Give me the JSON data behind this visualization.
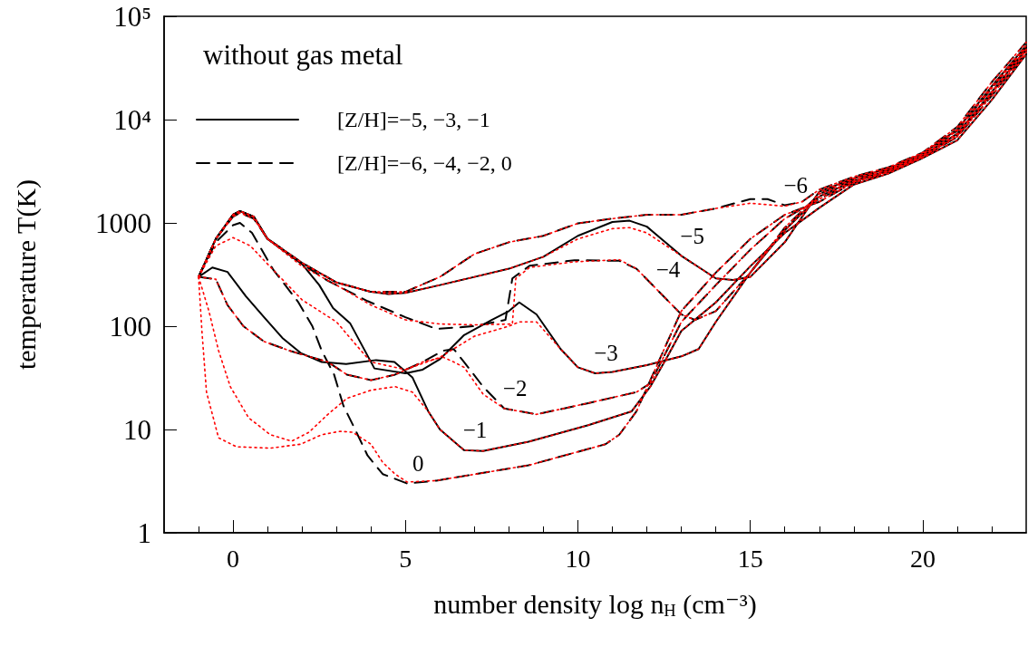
{
  "chart_data": {
    "type": "line",
    "xlabel": "number density log n$_{H}$ (cm⁻³)",
    "ylabel": "temperature T(K)",
    "legend_title": "without gas metal",
    "legend": "top left",
    "grid": false,
    "log": "y",
    "marker": "none",
    "xlim": [
      -2,
      23
    ],
    "xticks": [
      0,
      5,
      10,
      15,
      20
    ],
    "ylim": [
      1,
      100000
    ],
    "yticks": [
      1,
      10,
      100,
      1000,
      {
        "value": 10000,
        "label": "10⁴"
      },
      {
        "value": 100000,
        "label": "10⁵"
      }
    ],
    "annotations": [
      {
        "text": "−6",
        "x": 16,
        "y": 1480
      },
      {
        "text": "−5",
        "x": 13,
        "y": 480
      },
      {
        "text": "−4",
        "x": 12.3,
        "y": 225
      },
      {
        "text": "−3",
        "x": 10.5,
        "y": 35
      },
      {
        "text": "−2",
        "x": 7.86,
        "y": 16
      },
      {
        "text": "−1",
        "x": 6.7,
        "y": 6.3
      },
      {
        "text": "0",
        "x": 5.05,
        "y": 3.0
      }
    ],
    "series": [
      {
        "name": "[Z/H]=−6, −4, −2, 0",
        "color": "#000000",
        "line_style": "dashed",
        "x": [
          -1,
          -0.5,
          0,
          0.2,
          0.6,
          1,
          2,
          3,
          4,
          5,
          6,
          7,
          8,
          9,
          10,
          11,
          12,
          13,
          14,
          15,
          15.5,
          16,
          16.5,
          17,
          18,
          19,
          20,
          21,
          22,
          23
        ],
        "values": [
          300,
          700,
          1200,
          1300,
          1150,
          700,
          410,
          265,
          215,
          215,
          300,
          500,
          650,
          750,
          990,
          1100,
          1200,
          1200,
          1380,
          1700,
          1700,
          1480,
          1600,
          2100,
          2800,
          3450,
          4800,
          8500,
          23000,
          56000
        ]
      },
      {
        "name": "[Z/H]=−5, −3, −1",
        "color": "#000000",
        "line_style": "solid",
        "x": [
          -1,
          -0.5,
          0,
          0.2,
          0.6,
          1,
          2,
          3,
          4,
          4.5,
          5,
          6,
          7,
          8,
          9,
          10,
          11,
          11.5,
          12,
          13,
          14,
          14.5,
          15,
          16,
          17,
          18,
          19,
          20,
          21,
          22,
          23
        ],
        "values": [
          300,
          700,
          1200,
          1300,
          1150,
          700,
          410,
          265,
          215,
          205,
          210,
          250,
          300,
          360,
          470,
          750,
          1020,
          1050,
          920,
          480,
          290,
          280,
          300,
          650,
          2000,
          2700,
          3350,
          4700,
          8000,
          21000,
          52000
        ]
      },
      {
        "color": "#000000",
        "line_style": "dashed",
        "x": [
          -1,
          -0.5,
          0,
          0.2,
          0.6,
          1,
          2,
          2.75,
          3.9,
          5,
          5.9,
          7,
          7.9,
          8.1,
          8.6,
          9.9,
          11.2,
          11.7,
          12.3,
          13,
          13.4,
          14,
          15,
          16,
          17,
          18,
          19,
          20,
          21,
          22,
          23
        ],
        "values": [
          300,
          700,
          1150,
          1250,
          1100,
          700,
          400,
          275,
          175,
          122,
          94,
          100,
          115,
          290,
          385,
          435,
          430,
          360,
          225,
          130,
          115,
          140,
          330,
          900,
          1900,
          2650,
          3300,
          4600,
          7800,
          20000,
          50000
        ]
      },
      {
        "color": "#000000",
        "line_style": "solid",
        "x": [
          -1,
          -0.5,
          0,
          0.2,
          0.6,
          1,
          2,
          2.5,
          2.9,
          3.4,
          4.1,
          5,
          5.5,
          6,
          6.7,
          7.5,
          8,
          8.3,
          8.8,
          9.5,
          10,
          10.5,
          11,
          12,
          13,
          13.5,
          14,
          15,
          16,
          17,
          18,
          19,
          20,
          21,
          22,
          23
        ],
        "values": [
          300,
          700,
          1200,
          1300,
          1150,
          700,
          400,
          250,
          150,
          106,
          39,
          35,
          38,
          48,
          82,
          115,
          140,
          170,
          130,
          60,
          40,
          35,
          36,
          42,
          51,
          60,
          110,
          330,
          850,
          1800,
          2550,
          3200,
          4500,
          7300,
          18500,
          48000
        ]
      },
      {
        "color": "#000000",
        "line_style": "dashed",
        "x": [
          -1,
          -0.5,
          -0.16,
          0.3,
          0.9,
          1.7,
          2.75,
          3.3,
          4,
          4.7,
          5.5,
          6.1,
          6.4,
          6.7,
          7.25,
          7.86,
          8.8,
          10.3,
          11.7,
          12.1,
          13,
          14,
          15,
          16,
          17,
          18,
          19,
          20,
          21,
          22,
          23
        ],
        "values": [
          300,
          285,
          160,
          100,
          71,
          57,
          45,
          34,
          30,
          34,
          45,
          58,
          60,
          45,
          26,
          16,
          14,
          18,
          23,
          28,
          110,
          250,
          550,
          1100,
          1700,
          2500,
          3150,
          4400,
          7000,
          18000,
          47000
        ]
      },
      {
        "color": "#000000",
        "line_style": "solid",
        "x": [
          -1,
          -0.6,
          -0.16,
          0.37,
          0.9,
          1.43,
          1.96,
          2.57,
          3.28,
          4.15,
          4.68,
          5.2,
          5.66,
          6,
          6.7,
          7.25,
          8.57,
          10.3,
          11.56,
          12.1,
          12.6,
          13,
          14,
          15,
          16,
          17,
          18,
          19,
          20,
          21,
          22,
          23
        ],
        "values": [
          300,
          370,
          335,
          195,
          122,
          77,
          55,
          45,
          43,
          47,
          45,
          32,
          15,
          10,
          6.3,
          6.2,
          7.6,
          11,
          15,
          26,
          51,
          90,
          170,
          380,
          800,
          1400,
          2350,
          3000,
          4250,
          6300,
          15500,
          43000
        ]
      },
      {
        "color": "#000000",
        "line_style": "dashed",
        "x": [
          -1,
          -0.5,
          0,
          0.2,
          0.55,
          1.16,
          1.88,
          2.3,
          2.57,
          2.93,
          3.2,
          3.54,
          3.9,
          4.34,
          5.05,
          5.9,
          8.57,
          10.8,
          11.2,
          11.7,
          12.1,
          12.6,
          13,
          14,
          15,
          16,
          17,
          18,
          19,
          20,
          21,
          22,
          23
        ],
        "values": [
          300,
          650,
          950,
          1000,
          800,
          355,
          173,
          100,
          58,
          34,
          17,
          10,
          5.6,
          3.7,
          3.0,
          3.2,
          4.5,
          7.2,
          8.9,
          15,
          30,
          71,
          140,
          330,
          700,
          1200,
          1600,
          2450,
          3100,
          4350,
          6800,
          17000,
          45000
        ]
      },
      {
        "color": "#ff0000",
        "line_style": "dotted",
        "x": [
          -1,
          -0.5,
          0,
          0.2,
          0.6,
          1,
          2,
          3,
          4,
          5,
          6,
          7,
          8,
          9,
          10,
          11,
          12,
          13,
          14,
          15,
          15.5,
          16,
          16.5,
          17,
          18,
          19,
          20,
          21,
          22,
          23
        ],
        "values": [
          300,
          700,
          1200,
          1300,
          1150,
          700,
          410,
          265,
          215,
          215,
          300,
          500,
          650,
          750,
          990,
          1100,
          1200,
          1200,
          1380,
          1550,
          1500,
          1450,
          1600,
          2100,
          2800,
          3450,
          4800,
          8500,
          23000,
          56000
        ]
      },
      {
        "color": "#ff0000",
        "line_style": "dotted",
        "x": [
          -1,
          -0.5,
          0,
          0.2,
          0.6,
          1,
          2,
          3,
          4,
          4.5,
          5,
          6,
          7,
          8,
          9,
          10,
          11,
          11.5,
          12,
          13,
          14,
          14.5,
          15,
          16,
          17,
          18,
          19,
          20,
          21,
          22,
          23
        ],
        "values": [
          300,
          700,
          1200,
          1300,
          1150,
          700,
          410,
          265,
          215,
          205,
          210,
          250,
          300,
          360,
          470,
          700,
          880,
          900,
          800,
          480,
          290,
          280,
          300,
          650,
          2000,
          2700,
          3350,
          4700,
          8000,
          21000,
          52000
        ]
      },
      {
        "color": "#ff0000",
        "line_style": "dotted",
        "x": [
          -1,
          -0.5,
          0,
          0.2,
          0.6,
          1,
          2,
          3,
          4,
          5,
          6,
          7,
          8.1,
          8.2,
          8.6,
          9.9,
          11.2,
          11.7,
          12.3,
          13,
          13.4,
          14,
          15,
          16,
          17,
          18,
          19,
          20,
          21,
          22,
          23
        ],
        "values": [
          300,
          700,
          1150,
          1250,
          1100,
          700,
          380,
          250,
          160,
          115,
          105,
          103,
          105,
          290,
          370,
          420,
          440,
          360,
          225,
          130,
          115,
          140,
          330,
          900,
          1900,
          2650,
          3300,
          4600,
          7800,
          20000,
          50000
        ]
      },
      {
        "color": "#ff0000",
        "line_style": "dotted",
        "x": [
          -1,
          -0.5,
          0,
          0.5,
          1,
          2,
          3,
          3.5,
          4,
          5,
          6,
          7,
          8,
          8.3,
          8.8,
          9.5,
          10,
          10.5,
          11,
          12,
          13,
          13.5,
          14,
          15,
          16,
          17,
          18,
          19,
          20,
          21,
          22,
          23
        ],
        "values": [
          300,
          600,
          720,
          600,
          400,
          180,
          110,
          70,
          45,
          38,
          50,
          80,
          100,
          110,
          110,
          60,
          40,
          35,
          36,
          42,
          51,
          60,
          110,
          330,
          850,
          1800,
          2550,
          3200,
          4500,
          7300,
          18500,
          48000
        ]
      },
      {
        "color": "#ff0000",
        "line_style": "dotted",
        "x": [
          -1,
          -0.5,
          -0.16,
          0.3,
          0.9,
          1.7,
          2.75,
          3.3,
          4,
          4.7,
          5.5,
          6.1,
          6.4,
          6.7,
          7.25,
          7.86,
          8.8,
          10.3,
          11.7,
          12.1,
          13,
          14,
          15,
          16,
          17,
          18,
          19,
          20,
          21,
          22,
          23
        ],
        "values": [
          300,
          285,
          160,
          100,
          71,
          57,
          45,
          34,
          30,
          34,
          45,
          50,
          45,
          40,
          22,
          16,
          14,
          18,
          23,
          28,
          110,
          250,
          550,
          1100,
          1700,
          2500,
          3150,
          4400,
          7000,
          18000,
          47000
        ]
      },
      {
        "color": "#ff0000",
        "line_style": "dotted",
        "x": [
          -1,
          -0.7,
          -0.42,
          -0.08,
          0.45,
          1.08,
          1.7,
          2.2,
          2.75,
          3.3,
          4,
          4.7,
          5.2,
          5.66,
          6,
          6.7,
          7.25,
          8.57,
          10.3,
          11.56,
          12.1,
          12.6,
          13,
          14,
          15,
          16,
          17,
          18,
          19,
          20,
          21,
          22,
          23
        ],
        "values": [
          300,
          140,
          58,
          26,
          13,
          8.9,
          7.7,
          9.4,
          14,
          20,
          24,
          26,
          23,
          15,
          10,
          6.3,
          6.2,
          7.6,
          11,
          15,
          26,
          51,
          90,
          170,
          380,
          800,
          1400,
          2350,
          3000,
          4250,
          6300,
          15500,
          43000
        ]
      },
      {
        "color": "#ff0000",
        "line_style": "dotted",
        "x": [
          -1,
          -0.9,
          -0.77,
          -0.42,
          0.1,
          1.08,
          1.96,
          2.57,
          3.1,
          3.47,
          4,
          4.34,
          4.7,
          5.05,
          5.9,
          8.57,
          10.8,
          11.2,
          11.7,
          12.1,
          12.6,
          13,
          14,
          15,
          16,
          17,
          18,
          19,
          20,
          21,
          22,
          23
        ],
        "values": [
          300,
          87,
          23,
          8.3,
          6.8,
          6.6,
          7.2,
          8.9,
          9.6,
          9.4,
          7.2,
          4.8,
          3.7,
          3.1,
          3.2,
          4.5,
          7.2,
          8.9,
          15,
          30,
          71,
          140,
          330,
          700,
          1200,
          1600,
          2450,
          3100,
          4350,
          6800,
          17000,
          45000
        ]
      }
    ]
  }
}
